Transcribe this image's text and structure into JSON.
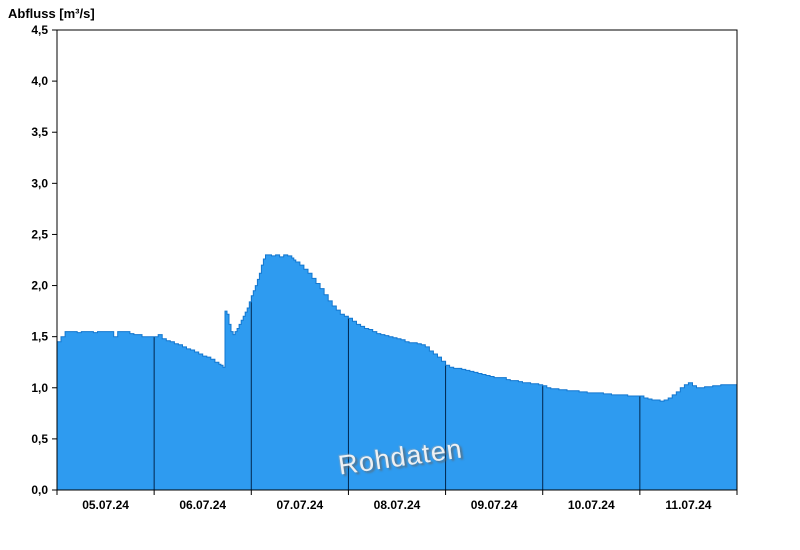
{
  "chart_data": {
    "type": "area",
    "step": true,
    "title": "Abfluss [m³/s]",
    "watermark": "Rohdaten",
    "ylabel": "Abfluss [m³/s]",
    "xlim": [
      0,
      168
    ],
    "ylim": [
      0,
      4.5
    ],
    "x_unit": "hours from 05.07.24 00:00",
    "grid": "vertical day separators inside area only",
    "legend_position": "none",
    "y_ticks": [
      {
        "v": 0,
        "label": "0,0"
      },
      {
        "v": 0.5,
        "label": "0,5"
      },
      {
        "v": 1,
        "label": "1,0"
      },
      {
        "v": 1.5,
        "label": "1,5"
      },
      {
        "v": 2,
        "label": "2,0"
      },
      {
        "v": 2.5,
        "label": "2,5"
      },
      {
        "v": 3,
        "label": "3,0"
      },
      {
        "v": 3.5,
        "label": "3,5"
      },
      {
        "v": 4,
        "label": "4,0"
      },
      {
        "v": 4.5,
        "label": "4,5"
      }
    ],
    "x_boundaries": [
      0,
      24,
      48,
      72,
      96,
      120,
      144,
      168
    ],
    "x_gridlines": [
      24,
      48,
      72,
      96,
      120,
      144
    ],
    "x_labels": [
      {
        "label": "05.07.24",
        "center": 12
      },
      {
        "label": "06.07.24",
        "center": 36
      },
      {
        "label": "07.07.24",
        "center": 60
      },
      {
        "label": "08.07.24",
        "center": 84
      },
      {
        "label": "09.07.24",
        "center": 108
      },
      {
        "label": "10.07.24",
        "center": 132
      },
      {
        "label": "11.07.24",
        "center": 156
      }
    ],
    "colors": {
      "area_fill": "#2e9bf0",
      "area_edge": "#1377cf",
      "day_line": "#00264d",
      "axis": "#000000",
      "background": "#ffffff",
      "text": "#000000"
    },
    "series": [
      {
        "name": "Rohdaten",
        "points": [
          [
            0,
            1.45
          ],
          [
            1,
            1.5
          ],
          [
            2,
            1.55
          ],
          [
            5,
            1.54
          ],
          [
            6,
            1.55
          ],
          [
            9,
            1.54
          ],
          [
            10,
            1.55
          ],
          [
            14,
            1.5
          ],
          [
            15,
            1.55
          ],
          [
            18,
            1.53
          ],
          [
            19,
            1.52
          ],
          [
            21,
            1.5
          ],
          [
            24,
            1.5
          ],
          [
            25,
            1.52
          ],
          [
            26,
            1.48
          ],
          [
            27,
            1.46
          ],
          [
            28,
            1.45
          ],
          [
            29,
            1.43
          ],
          [
            30,
            1.42
          ],
          [
            31,
            1.4
          ],
          [
            32,
            1.38
          ],
          [
            33,
            1.37
          ],
          [
            34,
            1.35
          ],
          [
            35,
            1.33
          ],
          [
            36,
            1.31
          ],
          [
            37,
            1.3
          ],
          [
            38,
            1.28
          ],
          [
            39,
            1.25
          ],
          [
            40,
            1.23
          ],
          [
            40.5,
            1.22
          ],
          [
            41,
            1.2
          ],
          [
            41.5,
            1.75
          ],
          [
            42,
            1.72
          ],
          [
            42.5,
            1.62
          ],
          [
            43,
            1.55
          ],
          [
            43.5,
            1.52
          ],
          [
            44,
            1.55
          ],
          [
            44.5,
            1.58
          ],
          [
            45,
            1.62
          ],
          [
            45.5,
            1.66
          ],
          [
            46,
            1.7
          ],
          [
            46.5,
            1.74
          ],
          [
            47,
            1.78
          ],
          [
            47.5,
            1.84
          ],
          [
            48,
            1.9
          ],
          [
            48.5,
            1.95
          ],
          [
            49,
            2.0
          ],
          [
            49.5,
            2.06
          ],
          [
            50,
            2.12
          ],
          [
            50.5,
            2.2
          ],
          [
            51,
            2.26
          ],
          [
            51.5,
            2.3
          ],
          [
            53,
            2.29
          ],
          [
            54,
            2.3
          ],
          [
            55,
            2.28
          ],
          [
            56,
            2.3
          ],
          [
            57,
            2.29
          ],
          [
            58,
            2.27
          ],
          [
            58.5,
            2.25
          ],
          [
            59,
            2.23
          ],
          [
            60,
            2.2
          ],
          [
            61,
            2.16
          ],
          [
            62,
            2.12
          ],
          [
            63,
            2.07
          ],
          [
            64,
            2.02
          ],
          [
            65,
            1.97
          ],
          [
            66,
            1.91
          ],
          [
            67,
            1.85
          ],
          [
            68,
            1.8
          ],
          [
            69,
            1.76
          ],
          [
            70,
            1.72
          ],
          [
            71,
            1.7
          ],
          [
            72,
            1.68
          ],
          [
            73,
            1.65
          ],
          [
            74,
            1.62
          ],
          [
            75,
            1.6
          ],
          [
            76,
            1.58
          ],
          [
            77,
            1.57
          ],
          [
            78,
            1.55
          ],
          [
            79,
            1.53
          ],
          [
            80,
            1.52
          ],
          [
            81,
            1.51
          ],
          [
            82,
            1.5
          ],
          [
            83,
            1.49
          ],
          [
            84,
            1.48
          ],
          [
            85,
            1.47
          ],
          [
            86,
            1.45
          ],
          [
            87,
            1.44
          ],
          [
            88,
            1.44
          ],
          [
            89,
            1.43
          ],
          [
            90,
            1.42
          ],
          [
            91,
            1.4
          ],
          [
            92,
            1.36
          ],
          [
            93,
            1.33
          ],
          [
            94,
            1.3
          ],
          [
            95,
            1.26
          ],
          [
            96,
            1.22
          ],
          [
            97,
            1.2
          ],
          [
            98,
            1.19
          ],
          [
            100,
            1.18
          ],
          [
            101,
            1.17
          ],
          [
            102,
            1.16
          ],
          [
            103,
            1.15
          ],
          [
            104,
            1.14
          ],
          [
            105,
            1.13
          ],
          [
            106,
            1.12
          ],
          [
            107,
            1.11
          ],
          [
            108,
            1.1
          ],
          [
            110,
            1.1
          ],
          [
            111,
            1.08
          ],
          [
            112,
            1.07
          ],
          [
            114,
            1.06
          ],
          [
            115,
            1.05
          ],
          [
            117,
            1.04
          ],
          [
            119,
            1.03
          ],
          [
            120,
            1.02
          ],
          [
            121,
            1.0
          ],
          [
            122,
            0.99
          ],
          [
            124,
            0.98
          ],
          [
            126,
            0.97
          ],
          [
            128,
            0.97
          ],
          [
            129,
            0.96
          ],
          [
            131,
            0.95
          ],
          [
            134,
            0.95
          ],
          [
            135,
            0.94
          ],
          [
            137,
            0.93
          ],
          [
            140,
            0.93
          ],
          [
            141,
            0.92
          ],
          [
            144,
            0.92
          ],
          [
            145,
            0.9
          ],
          [
            146,
            0.89
          ],
          [
            147,
            0.88
          ],
          [
            149,
            0.87
          ],
          [
            150,
            0.88
          ],
          [
            151,
            0.9
          ],
          [
            152,
            0.93
          ],
          [
            153,
            0.96
          ],
          [
            154,
            1.0
          ],
          [
            155,
            1.03
          ],
          [
            156,
            1.05
          ],
          [
            157,
            1.02
          ],
          [
            158,
            1.0
          ],
          [
            160,
            1.01
          ],
          [
            162,
            1.02
          ],
          [
            164,
            1.03
          ],
          [
            168,
            1.03
          ]
        ]
      }
    ]
  }
}
